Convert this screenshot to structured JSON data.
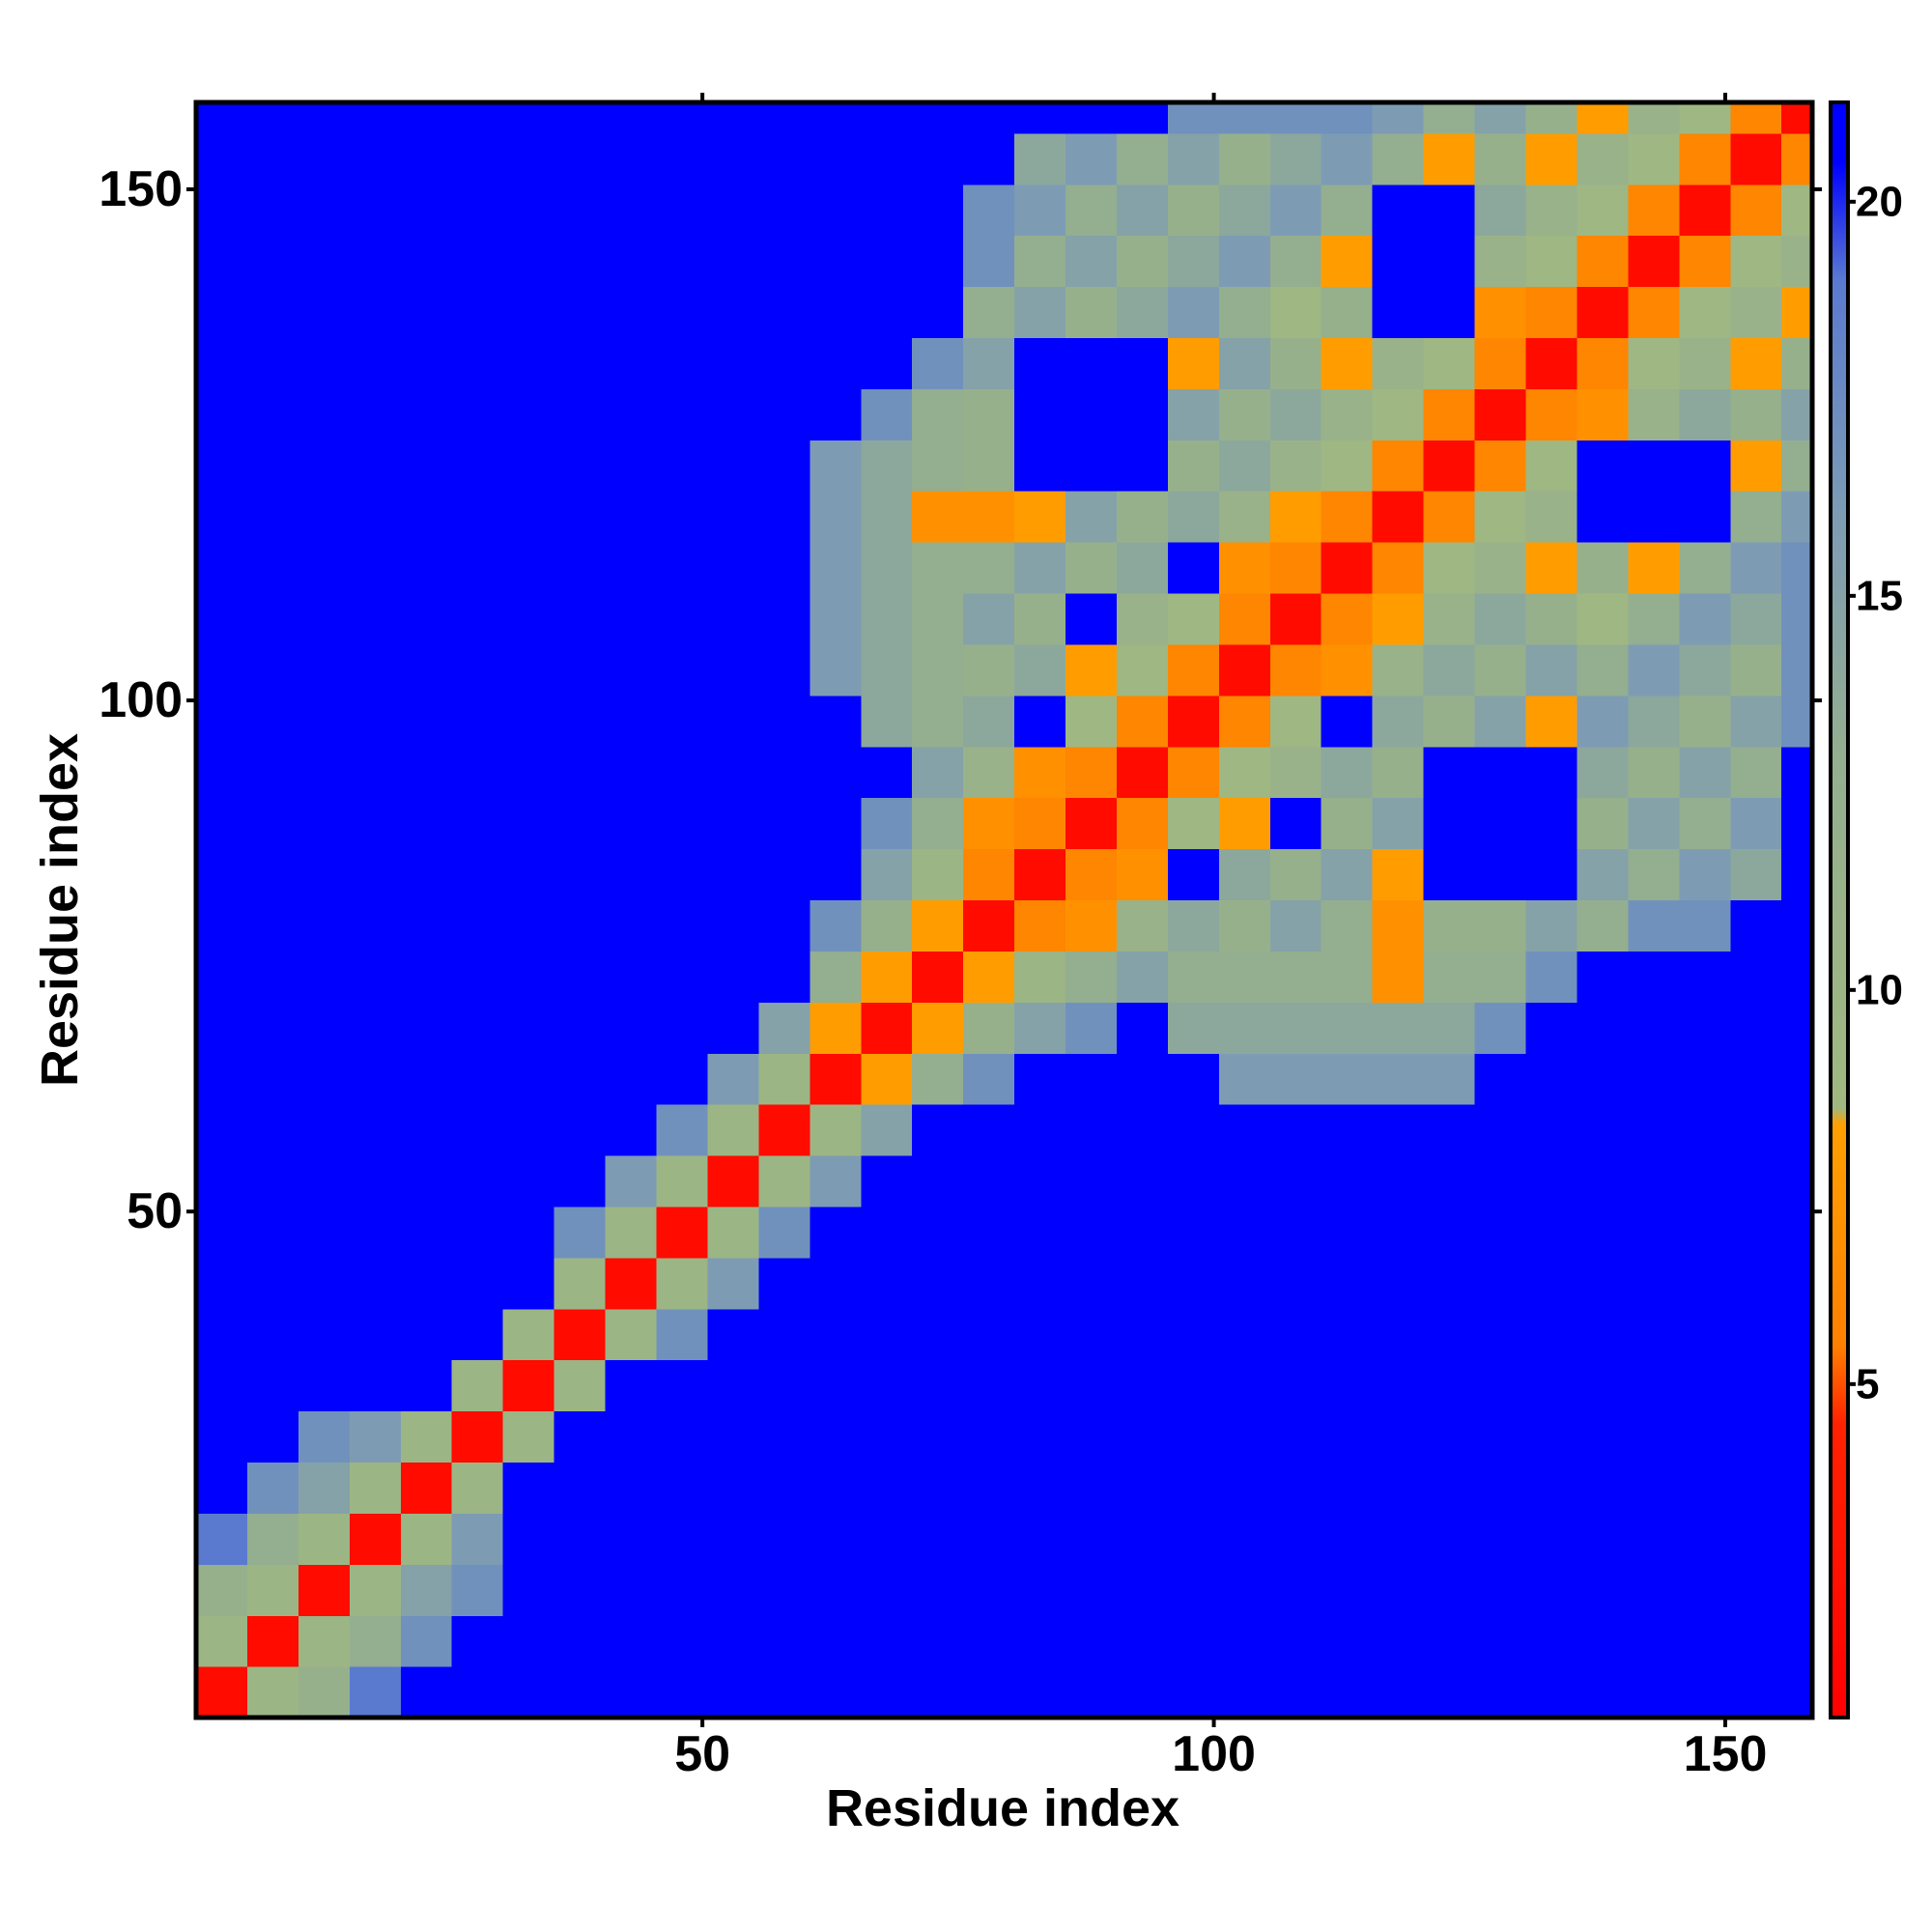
{
  "chart_data": {
    "type": "heatmap",
    "xlabel": "Residue index",
    "ylabel": "Residue index",
    "xlim": [
      0.5,
      158.5
    ],
    "ylim": [
      0.5,
      158.5
    ],
    "xticks": [
      50,
      100,
      150
    ],
    "yticks": [
      50,
      100,
      150
    ],
    "bins": [
      0.5,
      5.5,
      10.5,
      15.5,
      20.5,
      25.5,
      30.5,
      35.5,
      40.5,
      45.5,
      50.5,
      55.5,
      60.5,
      65.5,
      70.5,
      75.5,
      80.5,
      85.5,
      90.5,
      95.5,
      100.5,
      105.5,
      110.5,
      115.5,
      120.5,
      125.5,
      130.5,
      135.5,
      140.5,
      145.5,
      150.5,
      155.5,
      158.5
    ],
    "z": [
      [
        2,
        10,
        12,
        19,
        21,
        21,
        21,
        21,
        21,
        21,
        21,
        21,
        21,
        21,
        21,
        21,
        21,
        21,
        21,
        21,
        21,
        21,
        21,
        21,
        21,
        21,
        21,
        21,
        21,
        21,
        21,
        21
      ],
      [
        10,
        2,
        10,
        13,
        17,
        21,
        21,
        21,
        21,
        21,
        21,
        21,
        21,
        21,
        21,
        21,
        21,
        21,
        21,
        21,
        21,
        21,
        21,
        21,
        21,
        21,
        21,
        21,
        21,
        21,
        21,
        21
      ],
      [
        12,
        10,
        2,
        10,
        15,
        17,
        21,
        21,
        21,
        21,
        21,
        21,
        21,
        21,
        21,
        21,
        21,
        21,
        21,
        21,
        21,
        21,
        21,
        21,
        21,
        21,
        21,
        21,
        21,
        21,
        21,
        21
      ],
      [
        19,
        13,
        10,
        2,
        10,
        16,
        21,
        21,
        21,
        21,
        21,
        21,
        21,
        21,
        21,
        21,
        21,
        21,
        21,
        21,
        21,
        21,
        21,
        21,
        21,
        21,
        21,
        21,
        21,
        21,
        21,
        21
      ],
      [
        21,
        17,
        15,
        10,
        2,
        10,
        21,
        21,
        21,
        21,
        21,
        21,
        21,
        21,
        21,
        21,
        21,
        21,
        21,
        21,
        21,
        21,
        21,
        21,
        21,
        21,
        21,
        21,
        21,
        21,
        21,
        21
      ],
      [
        21,
        21,
        17,
        16,
        10,
        2,
        10,
        21,
        21,
        21,
        21,
        21,
        21,
        21,
        21,
        21,
        21,
        21,
        21,
        21,
        21,
        21,
        21,
        21,
        21,
        21,
        21,
        21,
        21,
        21,
        21,
        21
      ],
      [
        21,
        21,
        21,
        21,
        21,
        10,
        2,
        10,
        21,
        21,
        21,
        21,
        21,
        21,
        21,
        21,
        21,
        21,
        21,
        21,
        21,
        21,
        21,
        21,
        21,
        21,
        21,
        21,
        21,
        21,
        21,
        21
      ],
      [
        21,
        21,
        21,
        21,
        21,
        21,
        10,
        2,
        10,
        17,
        21,
        21,
        21,
        21,
        21,
        21,
        21,
        21,
        21,
        21,
        21,
        21,
        21,
        21,
        21,
        21,
        21,
        21,
        21,
        21,
        21,
        21
      ],
      [
        21,
        21,
        21,
        21,
        21,
        21,
        21,
        10,
        2,
        10,
        16,
        21,
        21,
        21,
        21,
        21,
        21,
        21,
        21,
        21,
        21,
        21,
        21,
        21,
        21,
        21,
        21,
        21,
        21,
        21,
        21,
        21
      ],
      [
        21,
        21,
        21,
        21,
        21,
        21,
        21,
        17,
        10,
        2,
        10,
        17,
        21,
        21,
        21,
        21,
        21,
        21,
        21,
        21,
        21,
        21,
        21,
        21,
        21,
        21,
        21,
        21,
        21,
        21,
        21,
        21
      ],
      [
        21,
        21,
        21,
        21,
        21,
        21,
        21,
        21,
        16,
        10,
        2,
        10,
        16,
        21,
        21,
        21,
        21,
        21,
        21,
        21,
        21,
        21,
        21,
        21,
        21,
        21,
        21,
        21,
        21,
        21,
        21,
        21
      ],
      [
        21,
        21,
        21,
        21,
        21,
        21,
        21,
        21,
        21,
        17,
        10,
        2,
        10,
        15,
        21,
        21,
        21,
        21,
        21,
        21,
        21,
        21,
        21,
        21,
        21,
        21,
        21,
        21,
        21,
        21,
        21,
        21
      ],
      [
        21,
        21,
        21,
        21,
        21,
        21,
        21,
        21,
        21,
        21,
        16,
        10,
        2,
        8,
        13,
        17,
        21,
        21,
        21,
        21,
        16,
        16,
        16,
        16,
        16,
        21,
        21,
        21,
        21,
        21,
        21,
        21
      ],
      [
        21,
        21,
        21,
        21,
        21,
        21,
        21,
        21,
        21,
        21,
        21,
        15,
        8,
        2,
        8,
        12,
        15,
        17,
        21,
        14,
        14,
        14,
        14,
        14,
        14,
        17,
        21,
        21,
        21,
        21,
        21,
        21
      ],
      [
        21,
        21,
        21,
        21,
        21,
        21,
        21,
        21,
        21,
        21,
        21,
        21,
        13,
        8,
        2,
        8,
        10,
        13,
        15,
        13,
        13,
        13,
        13,
        7,
        13,
        13,
        17,
        21,
        21,
        21,
        21,
        21
      ],
      [
        21,
        21,
        21,
        21,
        21,
        21,
        21,
        21,
        21,
        21,
        21,
        21,
        17,
        12,
        8,
        2,
        6,
        7,
        11,
        14,
        12,
        15,
        13,
        7,
        12,
        12,
        15,
        13,
        17,
        17,
        21,
        21
      ],
      [
        21,
        21,
        21,
        21,
        21,
        21,
        21,
        21,
        21,
        21,
        21,
        21,
        21,
        15,
        10,
        6,
        2,
        6,
        7,
        21,
        14,
        12,
        15,
        8,
        21,
        21,
        21,
        15,
        13,
        16,
        14,
        21
      ],
      [
        21,
        21,
        21,
        21,
        21,
        21,
        21,
        21,
        21,
        21,
        21,
        21,
        21,
        17,
        13,
        7,
        6,
        2,
        6,
        9,
        8,
        21,
        12,
        15,
        21,
        21,
        21,
        12,
        15,
        13,
        16,
        21
      ],
      [
        21,
        21,
        21,
        21,
        21,
        21,
        21,
        21,
        21,
        21,
        21,
        21,
        21,
        21,
        15,
        11,
        7,
        6,
        2,
        6,
        9,
        11,
        14,
        12,
        21,
        21,
        21,
        14,
        12,
        15,
        13,
        21
      ],
      [
        21,
        21,
        21,
        21,
        21,
        21,
        21,
        21,
        21,
        21,
        21,
        21,
        21,
        14,
        13,
        14,
        21,
        9,
        6,
        2,
        6,
        9,
        21,
        14,
        12,
        15,
        8,
        16,
        14,
        12,
        15,
        17
      ],
      [
        21,
        21,
        21,
        21,
        21,
        21,
        21,
        21,
        21,
        21,
        21,
        21,
        16,
        14,
        13,
        12,
        14,
        8,
        9,
        6,
        2,
        6,
        7,
        11,
        14,
        12,
        15,
        13,
        16,
        14,
        12,
        17
      ],
      [
        21,
        21,
        21,
        21,
        21,
        21,
        21,
        21,
        21,
        21,
        21,
        21,
        16,
        14,
        13,
        15,
        12,
        21,
        11,
        9,
        6,
        2,
        6,
        8,
        11,
        14,
        12,
        9,
        13,
        16,
        14,
        17
      ],
      [
        21,
        21,
        21,
        21,
        21,
        21,
        21,
        21,
        21,
        21,
        21,
        21,
        16,
        14,
        13,
        13,
        15,
        12,
        14,
        21,
        7,
        6,
        2,
        6,
        9,
        11,
        8,
        12,
        8,
        13,
        16,
        17
      ],
      [
        21,
        21,
        21,
        21,
        21,
        21,
        21,
        21,
        21,
        21,
        21,
        21,
        16,
        14,
        7,
        7,
        8,
        15,
        12,
        14,
        11,
        8,
        6,
        2,
        6,
        9,
        11,
        21,
        21,
        21,
        13,
        16
      ],
      [
        21,
        21,
        21,
        21,
        21,
        21,
        21,
        21,
        21,
        21,
        21,
        21,
        16,
        14,
        13,
        12,
        21,
        21,
        21,
        12,
        14,
        11,
        9,
        6,
        2,
        6,
        9,
        21,
        21,
        21,
        8,
        13
      ],
      [
        21,
        21,
        21,
        21,
        21,
        21,
        21,
        21,
        21,
        21,
        21,
        21,
        21,
        17,
        13,
        12,
        21,
        21,
        21,
        15,
        12,
        14,
        11,
        9,
        6,
        2,
        6,
        7,
        11,
        14,
        12,
        15
      ],
      [
        21,
        21,
        21,
        21,
        21,
        21,
        21,
        21,
        21,
        21,
        21,
        21,
        21,
        21,
        17,
        15,
        21,
        21,
        21,
        8,
        15,
        12,
        8,
        11,
        9,
        6,
        2,
        6,
        9,
        11,
        8,
        12
      ],
      [
        21,
        21,
        21,
        21,
        21,
        21,
        21,
        21,
        21,
        21,
        21,
        21,
        21,
        21,
        21,
        13,
        15,
        12,
        14,
        16,
        13,
        9,
        12,
        21,
        21,
        7,
        6,
        2,
        6,
        9,
        11,
        8
      ],
      [
        21,
        21,
        21,
        21,
        21,
        21,
        21,
        21,
        21,
        21,
        21,
        21,
        21,
        21,
        21,
        17,
        13,
        15,
        12,
        14,
        16,
        13,
        8,
        21,
        21,
        11,
        9,
        6,
        2,
        6,
        9,
        11
      ],
      [
        21,
        21,
        21,
        21,
        21,
        21,
        21,
        21,
        21,
        21,
        21,
        21,
        21,
        21,
        21,
        17,
        16,
        13,
        15,
        12,
        14,
        16,
        13,
        21,
        21,
        14,
        11,
        9,
        6,
        2,
        6,
        9
      ],
      [
        21,
        21,
        21,
        21,
        21,
        21,
        21,
        21,
        21,
        21,
        21,
        21,
        21,
        21,
        21,
        21,
        14,
        16,
        13,
        15,
        12,
        14,
        16,
        13,
        8,
        12,
        8,
        11,
        9,
        6,
        2,
        6
      ],
      [
        21,
        21,
        21,
        21,
        21,
        21,
        21,
        21,
        21,
        21,
        21,
        21,
        21,
        21,
        21,
        21,
        21,
        21,
        21,
        17,
        17,
        17,
        17,
        16,
        13,
        15,
        12,
        8,
        11,
        9,
        6,
        2
      ]
    ],
    "colorbar": {
      "lim": [
        0.77,
        21.26
      ],
      "ticks": [
        5,
        10,
        15,
        20
      ],
      "colorscale": [
        {
          "value": 0.77,
          "color": "#ff0000"
        },
        {
          "value": 4.5,
          "color": "#ff2200"
        },
        {
          "value": 5.5,
          "color": "#ff8000"
        },
        {
          "value": 8.3,
          "color": "#ffa000"
        },
        {
          "value": 8.5,
          "color": "#a0b880"
        },
        {
          "value": 13,
          "color": "#94ae90"
        },
        {
          "value": 16,
          "color": "#7d9cb4"
        },
        {
          "value": 19,
          "color": "#5a7ad0"
        },
        {
          "value": 20.5,
          "color": "#0000ff"
        },
        {
          "value": 21.26,
          "color": "#0000ff"
        }
      ]
    }
  }
}
